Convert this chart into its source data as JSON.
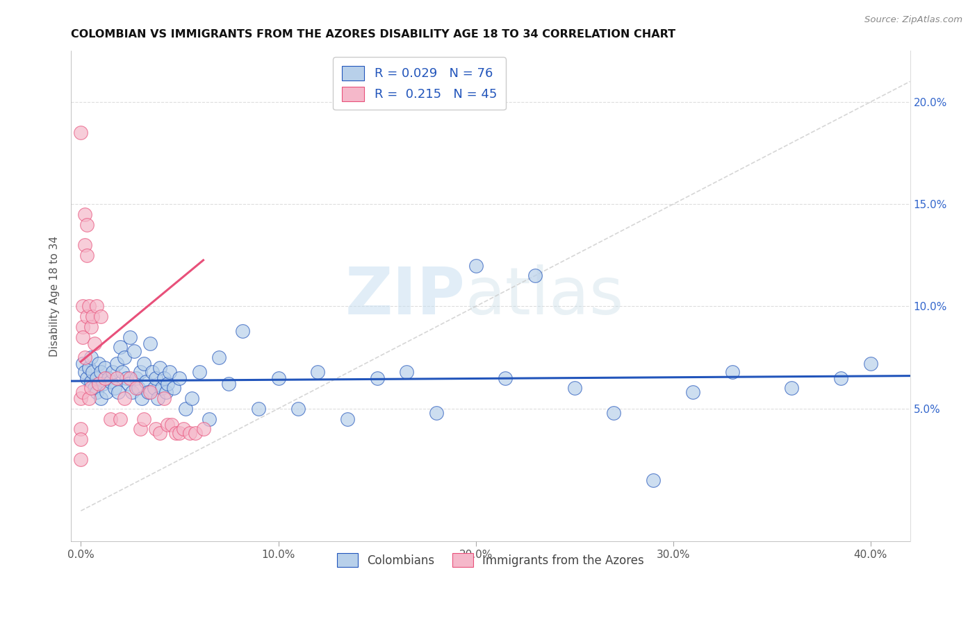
{
  "title": "COLOMBIAN VS IMMIGRANTS FROM THE AZORES DISABILITY AGE 18 TO 34 CORRELATION CHART",
  "source": "Source: ZipAtlas.com",
  "xlabel_ticks": [
    "0.0%",
    "10.0%",
    "20.0%",
    "30.0%",
    "40.0%"
  ],
  "xlabel_tick_vals": [
    0.0,
    0.1,
    0.2,
    0.3,
    0.4
  ],
  "ylabel": "Disability Age 18 to 34",
  "ylabel_ticks": [
    "5.0%",
    "10.0%",
    "15.0%",
    "20.0%"
  ],
  "ylabel_tick_vals": [
    0.05,
    0.1,
    0.15,
    0.2
  ],
  "xlim": [
    -0.005,
    0.42
  ],
  "ylim": [
    -0.015,
    0.225
  ],
  "watermark_zip": "ZIP",
  "watermark_atlas": "atlas",
  "legend_R_colombians": "0.029",
  "legend_N_colombians": "76",
  "legend_R_azores": "0.215",
  "legend_N_azores": "45",
  "colombian_color": "#b8d0ea",
  "azores_color": "#f5b8ca",
  "trend_colombian_color": "#2255bb",
  "trend_azores_color": "#e8507a",
  "diag_color": "#cccccc",
  "colombian_x": [
    0.001,
    0.002,
    0.003,
    0.004,
    0.005,
    0.005,
    0.006,
    0.007,
    0.008,
    0.008,
    0.009,
    0.01,
    0.01,
    0.011,
    0.012,
    0.013,
    0.014,
    0.015,
    0.016,
    0.017,
    0.018,
    0.019,
    0.02,
    0.021,
    0.022,
    0.023,
    0.024,
    0.025,
    0.026,
    0.027,
    0.028,
    0.029,
    0.03,
    0.031,
    0.032,
    0.033,
    0.034,
    0.035,
    0.036,
    0.037,
    0.038,
    0.039,
    0.04,
    0.041,
    0.042,
    0.043,
    0.044,
    0.045,
    0.047,
    0.05,
    0.053,
    0.056,
    0.06,
    0.065,
    0.07,
    0.075,
    0.082,
    0.09,
    0.1,
    0.11,
    0.12,
    0.135,
    0.15,
    0.165,
    0.18,
    0.2,
    0.215,
    0.23,
    0.25,
    0.27,
    0.29,
    0.31,
    0.33,
    0.36,
    0.385,
    0.4
  ],
  "colombian_y": [
    0.072,
    0.068,
    0.065,
    0.07,
    0.075,
    0.063,
    0.068,
    0.06,
    0.065,
    0.058,
    0.072,
    0.068,
    0.055,
    0.062,
    0.07,
    0.058,
    0.065,
    0.063,
    0.068,
    0.06,
    0.072,
    0.058,
    0.08,
    0.068,
    0.075,
    0.065,
    0.062,
    0.085,
    0.058,
    0.078,
    0.065,
    0.06,
    0.068,
    0.055,
    0.072,
    0.063,
    0.058,
    0.082,
    0.068,
    0.06,
    0.065,
    0.055,
    0.07,
    0.06,
    0.065,
    0.058,
    0.062,
    0.068,
    0.06,
    0.065,
    0.05,
    0.055,
    0.068,
    0.045,
    0.075,
    0.062,
    0.088,
    0.05,
    0.065,
    0.05,
    0.068,
    0.045,
    0.065,
    0.068,
    0.048,
    0.12,
    0.065,
    0.115,
    0.06,
    0.048,
    0.015,
    0.058,
    0.068,
    0.06,
    0.065,
    0.072
  ],
  "azores_x": [
    0.0,
    0.0,
    0.0,
    0.0,
    0.0,
    0.001,
    0.001,
    0.001,
    0.001,
    0.002,
    0.002,
    0.002,
    0.003,
    0.003,
    0.003,
    0.004,
    0.004,
    0.005,
    0.005,
    0.006,
    0.007,
    0.008,
    0.009,
    0.01,
    0.012,
    0.015,
    0.018,
    0.02,
    0.022,
    0.025,
    0.028,
    0.03,
    0.032,
    0.035,
    0.038,
    0.04,
    0.042,
    0.044,
    0.046,
    0.048,
    0.05,
    0.052,
    0.055,
    0.058,
    0.062
  ],
  "azores_y": [
    0.185,
    0.055,
    0.04,
    0.035,
    0.025,
    0.1,
    0.09,
    0.085,
    0.058,
    0.145,
    0.13,
    0.075,
    0.14,
    0.125,
    0.095,
    0.1,
    0.055,
    0.09,
    0.06,
    0.095,
    0.082,
    0.1,
    0.062,
    0.095,
    0.065,
    0.045,
    0.065,
    0.045,
    0.055,
    0.065,
    0.06,
    0.04,
    0.045,
    0.058,
    0.04,
    0.038,
    0.055,
    0.042,
    0.042,
    0.038,
    0.038,
    0.04,
    0.038,
    0.038,
    0.04
  ]
}
